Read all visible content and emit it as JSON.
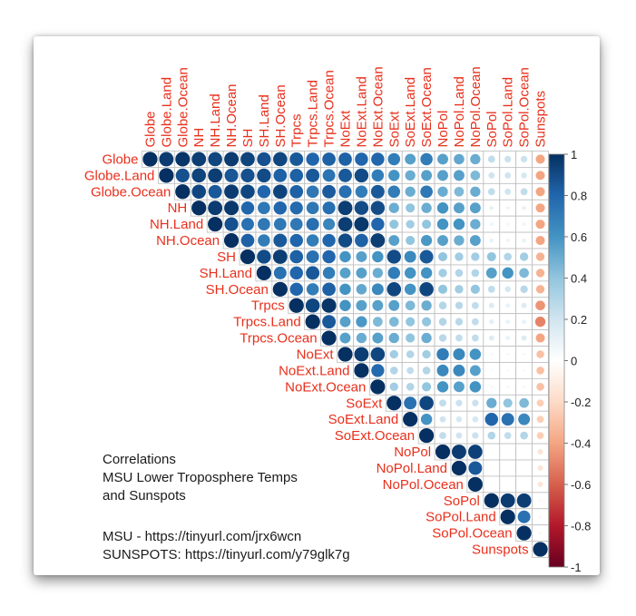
{
  "chart_data": {
    "type": "heatmap",
    "subtype": "correlation-upper-triangle-circles",
    "variables": [
      "Globe",
      "Globe.Land",
      "Globe.Ocean",
      "NH",
      "NH.Land",
      "NH.Ocean",
      "SH",
      "SH.Land",
      "SH.Ocean",
      "Trpcs",
      "Trpcs.Land",
      "Trpcs.Ocean",
      "NoExt",
      "NoExt.Land",
      "NoExt.Ocean",
      "SoExt",
      "SoExt.Land",
      "SoExt.Ocean",
      "NoPol",
      "NoPol.Land",
      "NoPol.Ocean",
      "SoPol",
      "SoPol.Land",
      "SoPol.Ocean",
      "Sunspots"
    ],
    "matrix_upper": [
      [
        1.0,
        0.96,
        0.98,
        0.95,
        0.92,
        0.96,
        0.93,
        0.88,
        0.92,
        0.85,
        0.8,
        0.82,
        0.82,
        0.8,
        0.8,
        0.7,
        0.55,
        0.7,
        0.55,
        0.52,
        0.5,
        0.25,
        0.22,
        0.22,
        -0.4
      ],
      [
        0.96,
        1.0,
        0.88,
        0.93,
        0.95,
        0.86,
        0.88,
        0.9,
        0.82,
        0.82,
        0.85,
        0.74,
        0.85,
        0.9,
        0.7,
        0.6,
        0.5,
        0.55,
        0.55,
        0.55,
        0.45,
        0.2,
        0.2,
        0.18,
        -0.4
      ],
      [
        0.98,
        0.88,
        1.0,
        0.92,
        0.85,
        0.96,
        0.92,
        0.8,
        0.93,
        0.82,
        0.72,
        0.84,
        0.76,
        0.7,
        0.85,
        0.7,
        0.5,
        0.72,
        0.5,
        0.45,
        0.5,
        0.25,
        0.2,
        0.25,
        -0.4
      ],
      [
        0.95,
        0.93,
        0.92,
        1.0,
        0.96,
        0.97,
        0.8,
        0.72,
        0.8,
        0.78,
        0.72,
        0.76,
        0.95,
        0.9,
        0.9,
        0.5,
        0.4,
        0.5,
        0.6,
        0.55,
        0.55,
        0.1,
        0.08,
        0.1,
        -0.4
      ],
      [
        0.92,
        0.95,
        0.85,
        0.96,
        1.0,
        0.88,
        0.75,
        0.72,
        0.72,
        0.72,
        0.76,
        0.66,
        0.95,
        0.97,
        0.8,
        0.4,
        0.35,
        0.4,
        0.6,
        0.6,
        0.5,
        0.08,
        0.06,
        0.08,
        -0.4
      ],
      [
        0.96,
        0.86,
        0.96,
        0.97,
        0.88,
        1.0,
        0.82,
        0.7,
        0.85,
        0.8,
        0.7,
        0.8,
        0.9,
        0.82,
        0.95,
        0.55,
        0.4,
        0.58,
        0.55,
        0.5,
        0.55,
        0.1,
        0.08,
        0.1,
        -0.4
      ],
      [
        0.93,
        0.88,
        0.92,
        0.8,
        0.75,
        0.82,
        1.0,
        0.9,
        0.95,
        0.82,
        0.75,
        0.8,
        0.6,
        0.55,
        0.6,
        0.9,
        0.65,
        0.85,
        0.4,
        0.35,
        0.35,
        0.4,
        0.3,
        0.35,
        -0.35
      ],
      [
        0.88,
        0.9,
        0.8,
        0.72,
        0.72,
        0.7,
        0.9,
        1.0,
        0.75,
        0.8,
        0.85,
        0.7,
        0.55,
        0.55,
        0.5,
        0.7,
        0.6,
        0.6,
        0.35,
        0.3,
        0.3,
        0.55,
        0.6,
        0.45,
        -0.35
      ],
      [
        0.92,
        0.82,
        0.93,
        0.8,
        0.72,
        0.85,
        0.95,
        0.75,
        1.0,
        0.8,
        0.7,
        0.82,
        0.6,
        0.52,
        0.65,
        0.92,
        0.6,
        0.92,
        0.4,
        0.35,
        0.4,
        0.25,
        0.18,
        0.28,
        -0.35
      ],
      [
        0.85,
        0.82,
        0.82,
        0.78,
        0.72,
        0.8,
        0.82,
        0.8,
        0.8,
        1.0,
        0.92,
        0.98,
        0.6,
        0.55,
        0.55,
        0.55,
        0.45,
        0.5,
        0.3,
        0.28,
        0.25,
        0.15,
        0.1,
        0.15,
        -0.45
      ],
      [
        0.8,
        0.85,
        0.72,
        0.72,
        0.76,
        0.7,
        0.75,
        0.85,
        0.7,
        0.92,
        1.0,
        0.85,
        0.55,
        0.58,
        0.45,
        0.45,
        0.4,
        0.4,
        0.3,
        0.28,
        0.25,
        0.12,
        0.1,
        0.1,
        -0.5
      ],
      [
        0.82,
        0.74,
        0.84,
        0.76,
        0.66,
        0.8,
        0.8,
        0.7,
        0.82,
        0.98,
        0.85,
        1.0,
        0.55,
        0.5,
        0.55,
        0.5,
        0.4,
        0.5,
        0.28,
        0.25,
        0.25,
        0.15,
        0.1,
        0.15,
        -0.4
      ],
      [
        0.82,
        0.85,
        0.76,
        0.95,
        0.95,
        0.9,
        0.6,
        0.55,
        0.6,
        0.6,
        0.55,
        0.55,
        1.0,
        0.95,
        0.92,
        0.35,
        0.3,
        0.35,
        0.7,
        0.65,
        0.6,
        0.05,
        0.05,
        0.05,
        -0.3
      ],
      [
        0.8,
        0.9,
        0.7,
        0.9,
        0.97,
        0.82,
        0.55,
        0.55,
        0.52,
        0.55,
        0.58,
        0.5,
        0.95,
        1.0,
        0.78,
        0.3,
        0.25,
        0.3,
        0.65,
        0.65,
        0.55,
        0.04,
        0.04,
        0.04,
        -0.3
      ],
      [
        0.8,
        0.7,
        0.85,
        0.9,
        0.8,
        0.95,
        0.6,
        0.5,
        0.65,
        0.55,
        0.45,
        0.55,
        0.92,
        0.78,
        1.0,
        0.35,
        0.3,
        0.4,
        0.6,
        0.55,
        0.6,
        0.05,
        0.05,
        0.05,
        -0.3
      ],
      [
        0.7,
        0.6,
        0.7,
        0.5,
        0.4,
        0.55,
        0.9,
        0.7,
        0.92,
        0.55,
        0.45,
        0.5,
        0.35,
        0.3,
        0.35,
        1.0,
        0.75,
        0.92,
        0.25,
        0.22,
        0.22,
        0.5,
        0.4,
        0.45,
        -0.25
      ],
      [
        0.55,
        0.5,
        0.5,
        0.4,
        0.35,
        0.4,
        0.65,
        0.6,
        0.6,
        0.45,
        0.4,
        0.4,
        0.3,
        0.25,
        0.3,
        0.75,
        1.0,
        0.6,
        0.2,
        0.18,
        0.18,
        0.8,
        0.75,
        0.65,
        -0.25
      ],
      [
        0.7,
        0.55,
        0.72,
        0.5,
        0.4,
        0.58,
        0.85,
        0.6,
        0.92,
        0.5,
        0.4,
        0.5,
        0.35,
        0.3,
        0.4,
        0.92,
        0.6,
        1.0,
        0.25,
        0.2,
        0.22,
        0.3,
        0.25,
        0.3,
        -0.25
      ],
      [
        0.55,
        0.55,
        0.5,
        0.6,
        0.6,
        0.55,
        0.4,
        0.35,
        0.4,
        0.3,
        0.3,
        0.28,
        0.7,
        0.65,
        0.6,
        0.25,
        0.2,
        0.25,
        1.0,
        0.96,
        0.94,
        0.02,
        0.02,
        0.02,
        -0.15
      ],
      [
        0.52,
        0.55,
        0.45,
        0.55,
        0.6,
        0.5,
        0.35,
        0.3,
        0.35,
        0.28,
        0.28,
        0.25,
        0.65,
        0.65,
        0.55,
        0.22,
        0.18,
        0.2,
        0.96,
        1.0,
        0.85,
        0.02,
        0.02,
        0.02,
        -0.15
      ],
      [
        0.5,
        0.45,
        0.5,
        0.55,
        0.5,
        0.55,
        0.35,
        0.3,
        0.4,
        0.25,
        0.25,
        0.25,
        0.6,
        0.55,
        0.6,
        0.22,
        0.18,
        0.22,
        0.94,
        0.85,
        1.0,
        0.02,
        0.02,
        0.02,
        -0.15
      ],
      [
        0.25,
        0.2,
        0.25,
        0.1,
        0.08,
        0.1,
        0.4,
        0.55,
        0.25,
        0.15,
        0.12,
        0.15,
        0.05,
        0.04,
        0.05,
        0.5,
        0.8,
        0.3,
        0.02,
        0.02,
        0.02,
        1.0,
        0.96,
        0.95,
        -0.05
      ],
      [
        0.22,
        0.2,
        0.2,
        0.08,
        0.06,
        0.08,
        0.3,
        0.6,
        0.18,
        0.1,
        0.1,
        0.1,
        0.05,
        0.04,
        0.05,
        0.4,
        0.75,
        0.25,
        0.02,
        0.02,
        0.02,
        0.96,
        1.0,
        0.75,
        -0.05
      ],
      [
        0.22,
        0.18,
        0.25,
        0.1,
        0.08,
        0.1,
        0.35,
        0.45,
        0.28,
        0.15,
        0.1,
        0.15,
        0.05,
        0.04,
        0.05,
        0.45,
        0.65,
        0.3,
        0.02,
        0.02,
        0.02,
        0.95,
        0.75,
        1.0,
        -0.05
      ],
      [
        -0.4,
        -0.4,
        -0.4,
        -0.4,
        -0.4,
        -0.4,
        -0.35,
        -0.35,
        -0.35,
        -0.45,
        -0.5,
        -0.4,
        -0.3,
        -0.3,
        -0.3,
        -0.25,
        -0.25,
        -0.25,
        -0.15,
        -0.15,
        -0.15,
        -0.05,
        -0.05,
        -0.05,
        1.0
      ]
    ],
    "color_scale": {
      "range": [
        -1,
        1
      ],
      "ticks": [
        "1",
        "0.8",
        "0.6",
        "0.4",
        "0.2",
        "0",
        "-0.2",
        "-0.4",
        "-0.6",
        "-0.8",
        "-1"
      ],
      "tick_values": [
        1,
        0.8,
        0.6,
        0.4,
        0.2,
        0,
        -0.2,
        -0.4,
        -0.6,
        -0.8,
        -1
      ],
      "colors": [
        "#67001f",
        "#b2182b",
        "#d6604d",
        "#f4a582",
        "#fddbc7",
        "#ffffff",
        "#d1e5f0",
        "#92c5de",
        "#4393c3",
        "#2166ac",
        "#053061"
      ]
    },
    "label_color": "#e8301c"
  },
  "caption": {
    "lines": [
      "Correlations",
      "MSU Lower Troposphere Temps",
      "and Sunspots"
    ],
    "sources": [
      "MSU - https://tinyurl.com/jrx6wcn",
      "SUNSPOTS: https://tinyurl.com/y79glk7g"
    ]
  }
}
